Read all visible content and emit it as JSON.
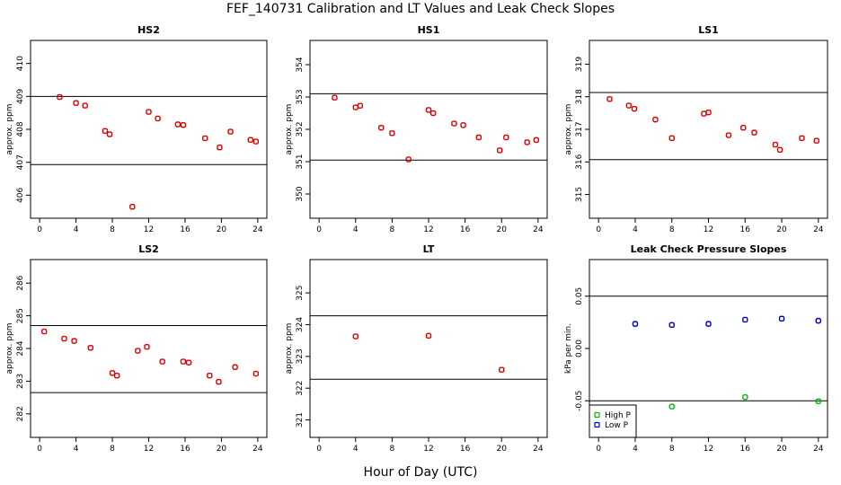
{
  "title": "FEF_140731  Calibration and LT Values and Leak Check Slopes",
  "xlabel": "Hour of Day (UTC)",
  "chart_data": [
    {
      "type": "scatter",
      "title": "HS2",
      "ylabel": "approx. ppm",
      "xlim": [
        -1,
        25
      ],
      "ylim": [
        405.3,
        410.7
      ],
      "xticks": [
        0,
        4,
        8,
        12,
        16,
        20,
        24
      ],
      "yticks": [
        406,
        407,
        408,
        409,
        410
      ],
      "hlines": [
        409.0,
        406.93
      ],
      "series": [
        {
          "color": "#dd0000",
          "x": [
            2.2,
            4.0,
            5.0,
            7.2,
            7.7,
            10.2,
            12.0,
            13.0,
            15.2,
            15.8,
            18.2,
            19.8,
            21.0,
            23.2,
            23.8
          ],
          "y": [
            408.98,
            408.8,
            408.72,
            407.95,
            407.85,
            405.65,
            408.53,
            408.33,
            408.15,
            408.13,
            407.73,
            407.45,
            407.93,
            407.68,
            407.63
          ]
        }
      ]
    },
    {
      "type": "scatter",
      "title": "HS1",
      "ylabel": "approx. ppm",
      "xlim": [
        -1,
        25
      ],
      "ylim": [
        349.25,
        354.75
      ],
      "xticks": [
        0,
        4,
        8,
        12,
        16,
        20,
        24
      ],
      "yticks": [
        350,
        351,
        352,
        353,
        354
      ],
      "hlines": [
        353.1,
        351.05
      ],
      "series": [
        {
          "color": "#dd0000",
          "x": [
            1.7,
            4.0,
            4.5,
            6.8,
            8.0,
            9.8,
            12.0,
            12.5,
            14.8,
            15.8,
            17.5,
            19.8,
            20.5,
            22.8,
            23.8
          ],
          "y": [
            352.98,
            352.68,
            352.73,
            352.05,
            351.88,
            351.07,
            352.6,
            352.5,
            352.18,
            352.13,
            351.75,
            351.35,
            351.75,
            351.6,
            351.67
          ]
        }
      ]
    },
    {
      "type": "scatter",
      "title": "LS1",
      "ylabel": "approx. ppm",
      "xlim": [
        -1,
        25
      ],
      "ylim": [
        314.27,
        319.73
      ],
      "xticks": [
        0,
        4,
        8,
        12,
        16,
        20,
        24
      ],
      "yticks": [
        315,
        316,
        317,
        318,
        319
      ],
      "hlines": [
        318.13,
        316.07
      ],
      "series": [
        {
          "color": "#dd0000",
          "x": [
            1.2,
            3.3,
            3.9,
            6.2,
            8.0,
            11.5,
            12.0,
            14.2,
            15.8,
            17.0,
            19.3,
            19.8,
            22.2,
            23.8
          ],
          "y": [
            317.93,
            317.73,
            317.63,
            317.3,
            316.73,
            317.48,
            317.52,
            316.82,
            317.05,
            316.9,
            316.53,
            316.37,
            316.73,
            316.65
          ]
        }
      ]
    },
    {
      "type": "scatter",
      "title": "LS2",
      "ylabel": "approx. ppm",
      "xlim": [
        -1,
        25
      ],
      "ylim": [
        281.28,
        286.72
      ],
      "xticks": [
        0,
        4,
        8,
        12,
        16,
        20,
        24
      ],
      "yticks": [
        282,
        283,
        284,
        285,
        286
      ],
      "hlines": [
        284.7,
        282.65
      ],
      "series": [
        {
          "color": "#dd0000",
          "x": [
            0.5,
            2.7,
            3.8,
            5.6,
            8.0,
            8.5,
            10.8,
            11.8,
            13.5,
            15.8,
            16.4,
            18.7,
            19.7,
            21.5,
            23.8
          ],
          "y": [
            284.52,
            284.3,
            284.23,
            284.02,
            283.25,
            283.17,
            283.93,
            284.05,
            283.6,
            283.6,
            283.57,
            283.17,
            282.98,
            283.43,
            283.23
          ]
        }
      ]
    },
    {
      "type": "scatter",
      "title": "LT",
      "ylabel": "approx. ppm",
      "xlim": [
        -1,
        25
      ],
      "ylim": [
        320.45,
        326.05
      ],
      "xticks": [
        0,
        4,
        8,
        12,
        16,
        20,
        24
      ],
      "yticks": [
        321,
        322,
        323,
        324,
        325
      ],
      "hlines": [
        324.28,
        322.28
      ],
      "series": [
        {
          "color": "#dd0000",
          "x": [
            4.0,
            12.0,
            20.0
          ],
          "y": [
            323.63,
            323.65,
            322.58
          ]
        }
      ]
    },
    {
      "type": "scatter",
      "title": "Leak Check Pressure Slopes",
      "ylabel": "kPa per min.",
      "xlim": [
        -1,
        25
      ],
      "ylim": [
        -0.085,
        0.085
      ],
      "xticks": [
        0,
        4,
        8,
        12,
        16,
        20,
        24
      ],
      "yticks": [
        -0.05,
        0.0,
        0.05
      ],
      "ytick_labels": [
        "-0.05",
        "0.00",
        "0.05"
      ],
      "hlines": [
        0.05,
        -0.05
      ],
      "legend": {
        "position": "bottom-left",
        "entries": [
          {
            "label": "High P",
            "color": "#00bb00"
          },
          {
            "label": "Low P",
            "color": "#0000cc"
          }
        ]
      },
      "series": [
        {
          "name": "High P",
          "color": "#00bb00",
          "x": [
            8,
            16,
            24
          ],
          "y": [
            -0.0555,
            -0.0465,
            -0.0505
          ]
        },
        {
          "name": "Low P",
          "color": "#0000cc",
          "x": [
            4,
            8,
            12,
            16,
            20,
            24
          ],
          "y": [
            0.0235,
            0.0225,
            0.0235,
            0.0275,
            0.0285,
            0.0265
          ]
        }
      ]
    }
  ]
}
